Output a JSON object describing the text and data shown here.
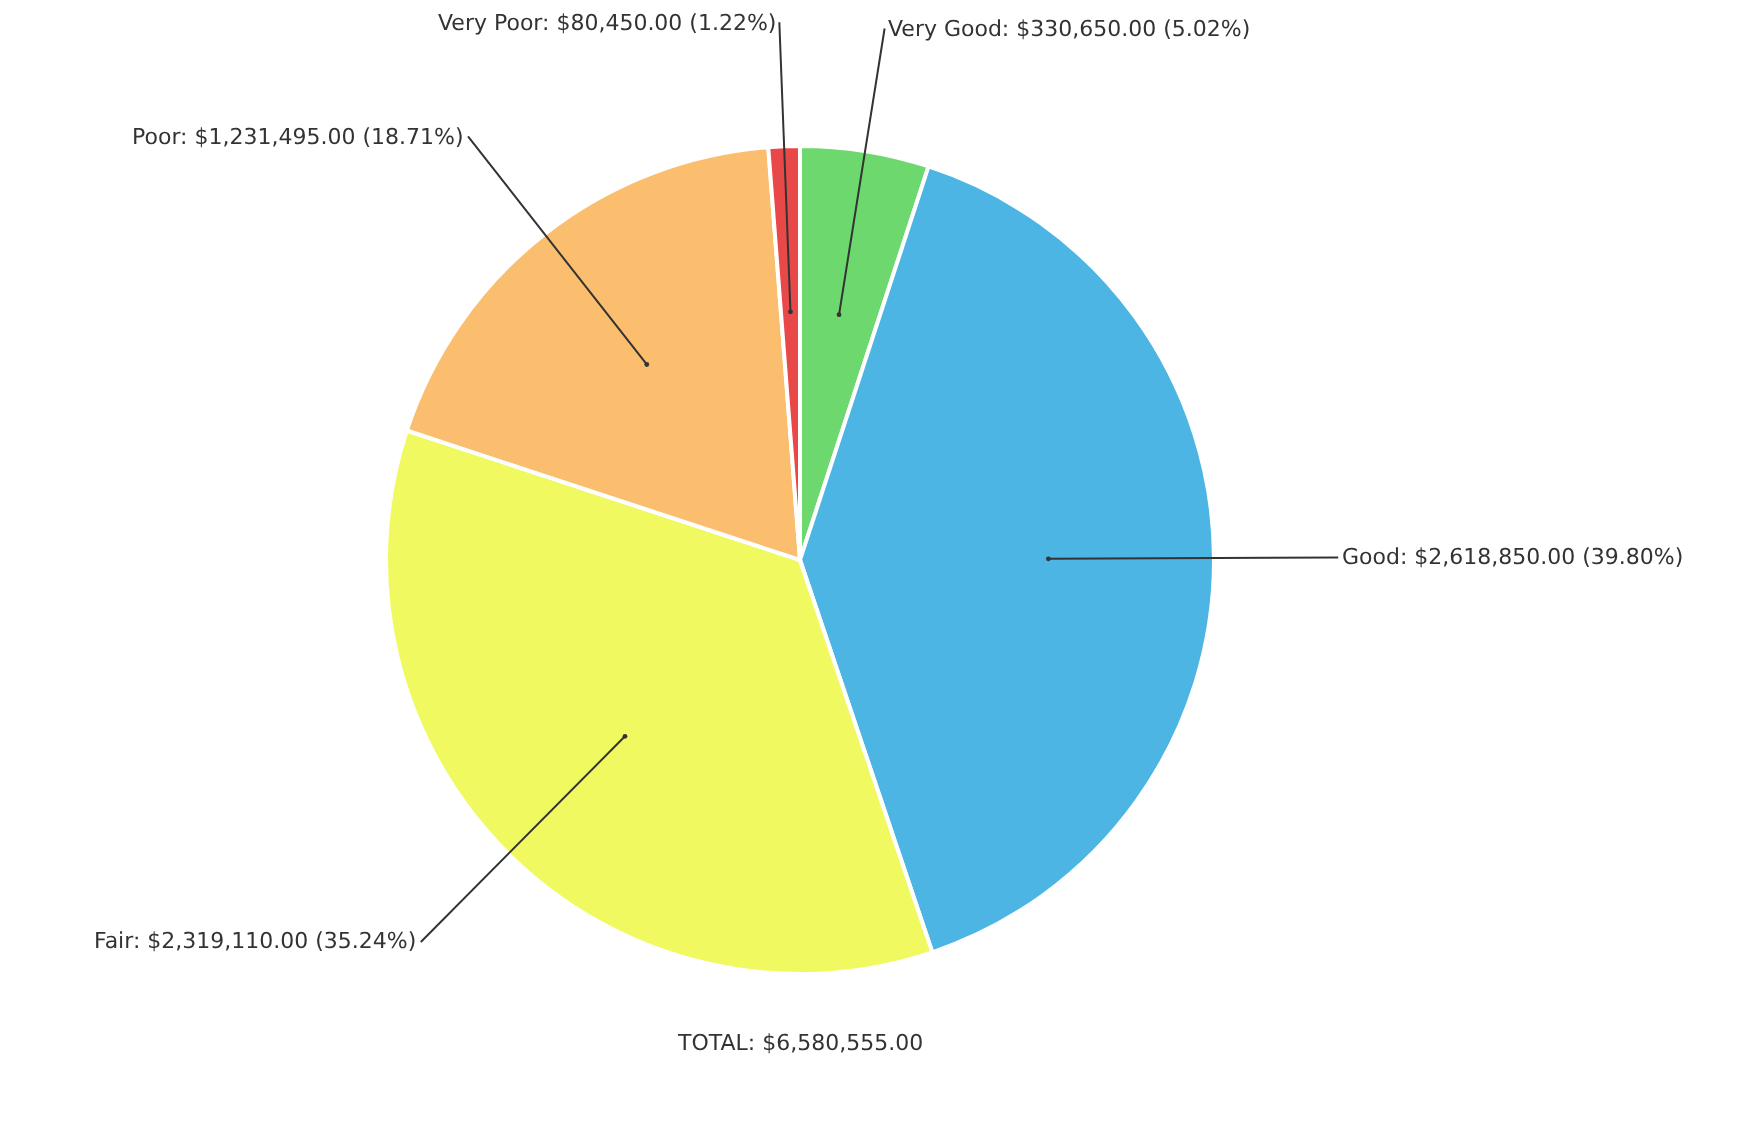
{
  "chart_data": {
    "type": "pie",
    "categories": [
      "Very Good",
      "Good",
      "Fair",
      "Poor",
      "Very Poor"
    ],
    "values": [
      330650,
      2618850,
      2319110,
      1231495,
      80450
    ],
    "value_labels": [
      "$330,650.00 (5.02%)",
      "$2,618,850.00 (39.80%)",
      "$2,319,110.00 (35.24%)",
      "$1,231,495.00 (18.71%)",
      "$80,450.00 (1.22%)"
    ],
    "colors": [
      "#6dd86d",
      "#4db5e4",
      "#f0fa60",
      "#fbbd6e",
      "#e94848"
    ],
    "annotations": [
      "TOTAL: $6,580,555.00"
    ],
    "legend": false
  }
}
